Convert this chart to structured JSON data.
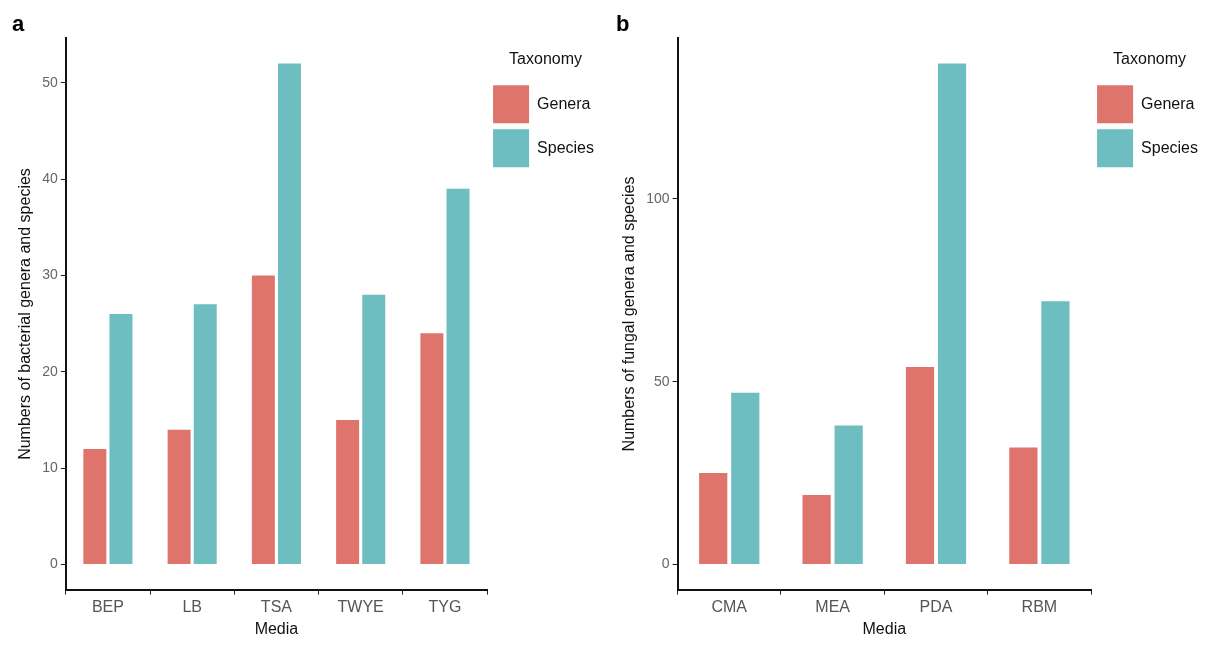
{
  "chart_data": [
    {
      "type": "bar",
      "title": "a",
      "xlabel": "Media",
      "ylabel": "Numbers of bacterial genera and species",
      "legend_title": "Taxonomy",
      "legend": "top right",
      "grid": false,
      "categories": [
        "BEP",
        "LB",
        "TSA",
        "TWYE",
        "TYG"
      ],
      "series": [
        {
          "name": "Genera",
          "color": "#de746c",
          "values": [
            12,
            14,
            30,
            15,
            24
          ]
        },
        {
          "name": "Species",
          "color": "#6dbdc1",
          "values": [
            26,
            27,
            52,
            28,
            39
          ]
        }
      ],
      "ylim": [
        -2.6,
        54.6
      ],
      "yticks": [
        0,
        10,
        20,
        30,
        40,
        50
      ]
    },
    {
      "type": "bar",
      "title": "b",
      "xlabel": "Media",
      "ylabel": "Numbers of fungal genera and species",
      "legend_title": "Taxonomy",
      "legend": "top right",
      "grid": false,
      "categories": [
        "CMA",
        "MEA",
        "PDA",
        "RBM"
      ],
      "series": [
        {
          "name": "Genera",
          "color": "#de746c",
          "values": [
            25,
            19,
            54,
            32
          ]
        },
        {
          "name": "Species",
          "color": "#6dbdc1",
          "values": [
            47,
            38,
            137,
            72
          ]
        }
      ],
      "ylim": [
        -6.85,
        143.85
      ],
      "yticks": [
        0,
        50,
        100
      ]
    }
  ]
}
